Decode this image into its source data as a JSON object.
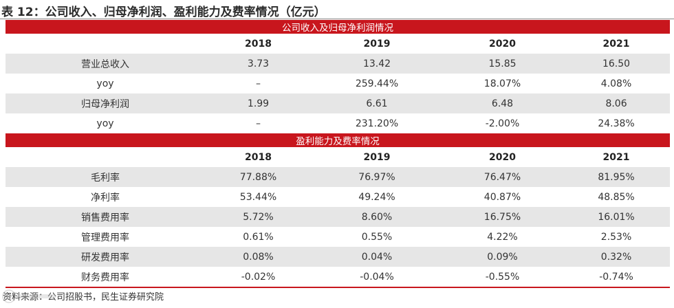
{
  "title": "表 12：公司收入、归母净利润、盈利能力及费率情况（亿元）",
  "section1": {
    "band": "公司收入及归母净利润情况",
    "years": [
      "2018",
      "2019",
      "2020",
      "2021"
    ],
    "rows": [
      {
        "label": "营业总收入",
        "values": [
          "3.73",
          "13.42",
          "15.85",
          "16.50"
        ]
      },
      {
        "label": "yoy",
        "values": [
          "–",
          "259.44%",
          "18.07%",
          "4.08%"
        ]
      },
      {
        "label": "归母净利润",
        "values": [
          "1.99",
          "6.61",
          "6.48",
          "8.06"
        ]
      },
      {
        "label": "yoy",
        "values": [
          "–",
          "231.20%",
          "-2.00%",
          "24.38%"
        ]
      }
    ]
  },
  "section2": {
    "band": "盈利能力及费率情况",
    "years": [
      "2018",
      "2019",
      "2020",
      "2021"
    ],
    "rows": [
      {
        "label": "毛利率",
        "values": [
          "77.88%",
          "76.97%",
          "76.47%",
          "81.95%"
        ]
      },
      {
        "label": "净利率",
        "values": [
          "53.44%",
          "49.24%",
          "40.87%",
          "48.85%"
        ]
      },
      {
        "label": "销售费用率",
        "values": [
          "5.72%",
          "8.60%",
          "16.75%",
          "16.01%"
        ]
      },
      {
        "label": "管理费用率",
        "values": [
          "0.61%",
          "0.55%",
          "4.22%",
          "2.53%"
        ]
      },
      {
        "label": "研发费用率",
        "values": [
          "0.08%",
          "0.04%",
          "0.09%",
          "0.32%"
        ]
      },
      {
        "label": "财务费用率",
        "values": [
          "-0.02%",
          "-0.04%",
          "-0.55%",
          "-0.74%"
        ]
      }
    ]
  },
  "source": "资料来源：公司招股书，民生证券研究院",
  "colors": {
    "band": "#c8161d",
    "shade": "#e6e6e6",
    "text": "#333333"
  }
}
